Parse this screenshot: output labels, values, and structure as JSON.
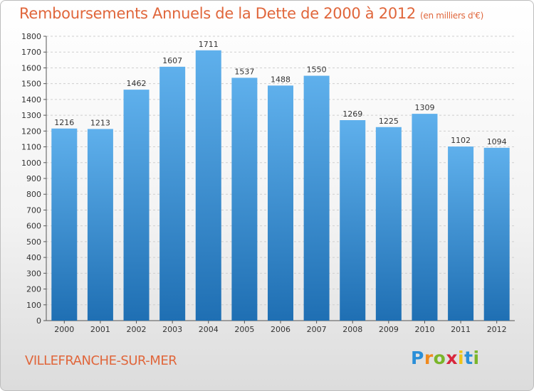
{
  "chart_data": {
    "type": "bar",
    "title": "Remboursements Annuels de la Dette de 2000 à 2012",
    "subtitle": "(en milliers d'€)",
    "categories": [
      "2000",
      "2001",
      "2002",
      "2003",
      "2004",
      "2005",
      "2006",
      "2007",
      "2008",
      "2009",
      "2010",
      "2011",
      "2012"
    ],
    "values": [
      1216,
      1213,
      1462,
      1607,
      1711,
      1537,
      1488,
      1550,
      1269,
      1225,
      1309,
      1102,
      1094
    ],
    "ylim": [
      0,
      1800
    ],
    "yticks": [
      0,
      100,
      200,
      300,
      400,
      500,
      600,
      700,
      800,
      900,
      1000,
      1100,
      1200,
      1300,
      1400,
      1500,
      1600,
      1700,
      1800
    ],
    "grid": true,
    "bar_color": "#3a8fd6"
  },
  "footer": {
    "city": "VILLEFRANCHE-SUR-MER",
    "logo_letters": [
      "P",
      "r",
      "o",
      "x",
      "i",
      "t",
      "i"
    ],
    "logo_colors": [
      "#2a8fd8",
      "#f08a1e",
      "#7ab52a",
      "#d8263c",
      "#f0c419",
      "#2a8fd8",
      "#7ab52a"
    ]
  }
}
